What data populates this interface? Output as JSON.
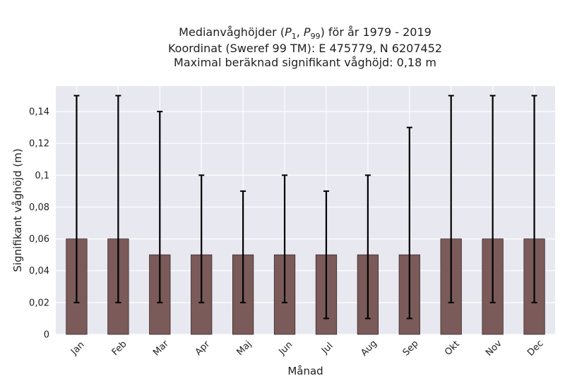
{
  "chart_data": {
    "type": "bar",
    "title_lines": [
      "Medianvåghöjder (P1, P99) för år 1979 - 2019",
      "Koordinat (Sweref 99 TM): E 475779, N 6207452",
      "Maximal beräknad signifikant våghöjd: 0,18 m"
    ],
    "xlabel": "Månad",
    "ylabel": "Signifikant våghöjd (m)",
    "categories": [
      "Jan",
      "Feb",
      "Mar",
      "Apr",
      "Maj",
      "Jun",
      "Jul",
      "Aug",
      "Sep",
      "Okt",
      "Nov",
      "Dec"
    ],
    "values": [
      0.06,
      0.06,
      0.05,
      0.05,
      0.05,
      0.05,
      0.05,
      0.05,
      0.05,
      0.06,
      0.06,
      0.06
    ],
    "p1": [
      0.02,
      0.02,
      0.02,
      0.02,
      0.02,
      0.02,
      0.01,
      0.01,
      0.01,
      0.02,
      0.02,
      0.02
    ],
    "p99": [
      0.15,
      0.15,
      0.14,
      0.1,
      0.09,
      0.1,
      0.09,
      0.1,
      0.13,
      0.15,
      0.15,
      0.15
    ],
    "ylim": [
      0,
      0.156
    ],
    "yticks": [
      0,
      0.02,
      0.04,
      0.06,
      0.08,
      0.1,
      0.12,
      0.14
    ],
    "ytick_labels": [
      "0",
      "0,02",
      "0,04",
      "0,06",
      "0,08",
      "0,1",
      "0,12",
      "0,14"
    ],
    "grid": true,
    "colors": {
      "bar": "#7b5a5a",
      "bar_edge": "#3a2a2a",
      "background": "#e8e8f0",
      "grid": "#ffffff",
      "errorbar": "#000000"
    }
  }
}
